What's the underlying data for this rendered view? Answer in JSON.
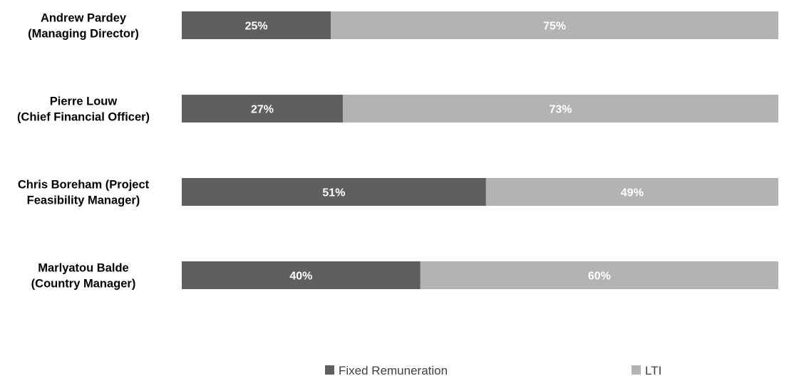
{
  "chart_data": {
    "type": "bar",
    "orientation": "horizontal",
    "stacked": true,
    "categories": [
      [
        "Andrew Pardey",
        "(Managing Director)"
      ],
      [
        "Pierre Louw",
        "(Chief Financial Officer)"
      ],
      [
        "Chris Boreham (Project",
        "Feasibility Manager)"
      ],
      [
        "Marlyatou Balde",
        "(Country Manager)"
      ]
    ],
    "series": [
      {
        "name": "Fixed Remuneration",
        "values": [
          25,
          27,
          51,
          40
        ],
        "labels": [
          "25%",
          "27%",
          "51%",
          "40%"
        ],
        "color": "#5f5f5f"
      },
      {
        "name": "LTI",
        "values": [
          75,
          73,
          49,
          60
        ],
        "labels": [
          "75%",
          "73%",
          "49%",
          "60%"
        ],
        "color": "#b3b3b3"
      }
    ],
    "unit": "%",
    "xlim": [
      0,
      100
    ],
    "grid": false,
    "legend": "bottom"
  }
}
